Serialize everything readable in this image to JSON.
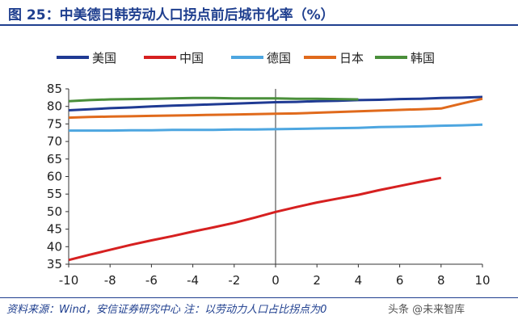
{
  "title": "图 25：中美德日韩劳动人口拐点前后城市化率（%）",
  "source": "资料来源：Wind，安信证券研究中心 注：以劳动力人口占比拐点为0",
  "watermark": "头条 @未来智库",
  "chart_data": {
    "type": "line",
    "xlim": [
      -10,
      10
    ],
    "ylim": [
      35,
      85
    ],
    "xticks": [
      -10,
      -8,
      -6,
      -4,
      -2,
      0,
      2,
      4,
      6,
      8,
      10
    ],
    "yticks": [
      35,
      40,
      45,
      50,
      55,
      60,
      65,
      70,
      75,
      80,
      85
    ],
    "legend_position": "top",
    "series": [
      {
        "name": "美国",
        "color": "#1f3a93",
        "x": [
          -10,
          -9,
          -8,
          -7,
          -6,
          -5,
          -4,
          -3,
          -2,
          -1,
          0,
          1,
          2,
          3,
          4,
          5,
          6,
          7,
          8,
          9,
          10
        ],
        "y": [
          78.9,
          79.2,
          79.5,
          79.7,
          80.0,
          80.2,
          80.4,
          80.6,
          80.8,
          81.0,
          81.2,
          81.3,
          81.5,
          81.6,
          81.8,
          81.9,
          82.1,
          82.2,
          82.4,
          82.5,
          82.7
        ]
      },
      {
        "name": "中国",
        "color": "#d62020",
        "x": [
          -10,
          -9,
          -8,
          -7,
          -6,
          -5,
          -4,
          -3,
          -2,
          -1,
          0,
          1,
          2,
          3,
          4,
          5,
          6,
          7,
          8
        ],
        "y": [
          36.2,
          37.7,
          39.1,
          40.5,
          41.8,
          43.0,
          44.3,
          45.5,
          46.8,
          48.3,
          49.9,
          51.3,
          52.6,
          53.7,
          54.8,
          56.1,
          57.3,
          58.5,
          59.6
        ]
      },
      {
        "name": "德国",
        "color": "#4da6e0",
        "x": [
          -10,
          -9,
          -8,
          -7,
          -6,
          -5,
          -4,
          -3,
          -2,
          -1,
          0,
          1,
          2,
          3,
          4,
          5,
          6,
          7,
          8,
          9,
          10
        ],
        "y": [
          73.1,
          73.1,
          73.1,
          73.2,
          73.2,
          73.3,
          73.3,
          73.3,
          73.4,
          73.4,
          73.5,
          73.6,
          73.7,
          73.8,
          73.9,
          74.1,
          74.2,
          74.3,
          74.5,
          74.6,
          74.8
        ]
      },
      {
        "name": "日本",
        "color": "#e06a1c",
        "x": [
          -10,
          -9,
          -8,
          -7,
          -6,
          -5,
          -4,
          -3,
          -2,
          -1,
          0,
          1,
          2,
          3,
          4,
          5,
          6,
          7,
          8,
          9,
          10
        ],
        "y": [
          76.8,
          77.0,
          77.1,
          77.2,
          77.3,
          77.4,
          77.5,
          77.6,
          77.7,
          77.8,
          77.9,
          78.0,
          78.2,
          78.4,
          78.6,
          78.8,
          79.0,
          79.2,
          79.4,
          80.8,
          82.2
        ]
      },
      {
        "name": "韩国",
        "color": "#4a8f3a",
        "x": [
          -10,
          -9,
          -8,
          -7,
          -6,
          -5,
          -4,
          -3,
          -2,
          -1,
          0,
          1,
          2,
          3,
          4
        ],
        "y": [
          81.5,
          81.8,
          82.0,
          82.1,
          82.2,
          82.3,
          82.4,
          82.4,
          82.3,
          82.3,
          82.3,
          82.2,
          82.2,
          82.1,
          82.0
        ]
      }
    ]
  }
}
